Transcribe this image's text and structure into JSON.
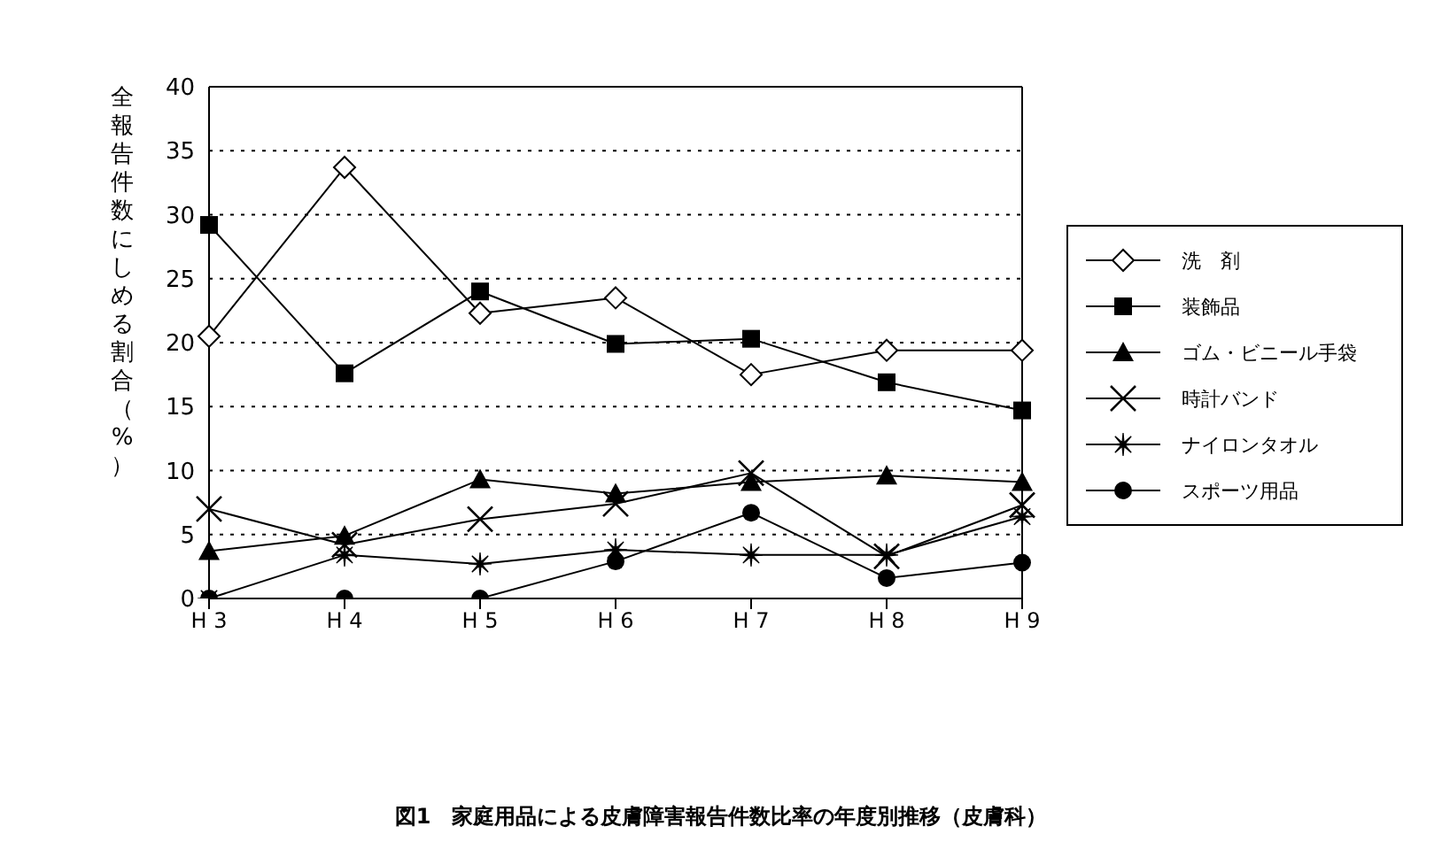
{
  "chart_data": {
    "type": "line",
    "title": "図1　家庭用品による皮膚障害報告件数比率の年度別推移（皮膚科）",
    "ylabel": "全報告件数にしめる割合（%）",
    "categories": [
      "H 3",
      "H 4",
      "H 5",
      "H 6",
      "H 7",
      "H 8",
      "H 9"
    ],
    "series": [
      {
        "name": "洗　剤",
        "color": "#000000",
        "marker": "diamond",
        "values": [
          20.5,
          33.7,
          22.3,
          23.5,
          17.5,
          19.4,
          19.4
        ]
      },
      {
        "name": "装飾品",
        "color": "#000000",
        "marker": "square",
        "values": [
          29.2,
          17.6,
          24.0,
          19.9,
          20.3,
          16.9,
          14.7
        ]
      },
      {
        "name": "ゴム・ビニール手袋",
        "color": "#000000",
        "marker": "triangle",
        "values": [
          3.7,
          4.9,
          9.3,
          8.2,
          9.1,
          9.6,
          9.1
        ]
      },
      {
        "name": "時計バンド",
        "color": "#000000",
        "marker": "cross",
        "values": [
          7.0,
          4.2,
          6.2,
          7.4,
          9.8,
          3.3,
          7.3
        ]
      },
      {
        "name": "ナイロンタオル",
        "color": "#000000",
        "marker": "star",
        "values": [
          0,
          3.4,
          2.7,
          3.8,
          3.4,
          3.4,
          6.4
        ]
      },
      {
        "name": "スポーツ用品",
        "color": "#000000",
        "marker": "circle",
        "values": [
          0,
          0,
          0,
          2.9,
          6.7,
          1.6,
          2.8
        ]
      }
    ],
    "ylim": [
      0,
      40
    ],
    "yticks": [
      0,
      5,
      10,
      15,
      20,
      25,
      30,
      35,
      40
    ],
    "grid": "y",
    "legend": "right",
    "line_style": "solid"
  }
}
